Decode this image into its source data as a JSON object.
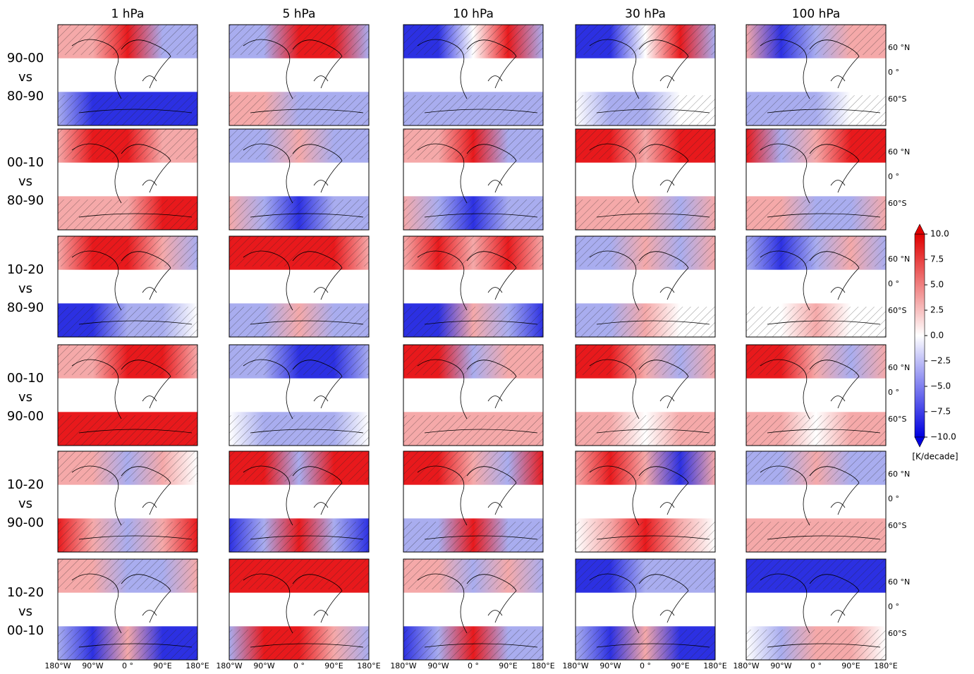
{
  "column_titles": [
    "1 hPa",
    "5 hPa",
    "10 hPa",
    "30 hPa",
    "100 hPa"
  ],
  "row_labels": [
    [
      "90-00",
      "vs",
      "80-90"
    ],
    [
      "00-10",
      "vs",
      "80-90"
    ],
    [
      "10-20",
      "vs",
      "80-90"
    ],
    [
      "00-10",
      "vs",
      "90-00"
    ],
    [
      "10-20",
      "vs",
      "90-00"
    ],
    [
      "10-20",
      "vs",
      "00-10"
    ]
  ],
  "latitude_labels": [
    "60 °N",
    "0 °",
    "60°S"
  ],
  "longitude_labels": [
    "180°W",
    "90°W",
    "0 °",
    "90°E",
    "180°E"
  ],
  "colorbar": {
    "lim": [
      -10,
      10
    ],
    "ticks": [
      {
        "value": 10,
        "label": "10.0"
      },
      {
        "value": 7.5,
        "label": "7.5"
      },
      {
        "value": 5,
        "label": "5.0"
      },
      {
        "value": 2.5,
        "label": "2.5"
      },
      {
        "value": 0,
        "label": "0.0"
      },
      {
        "value": -2.5,
        "label": "−2.5"
      },
      {
        "value": -5,
        "label": "−5.0"
      },
      {
        "value": -7.5,
        "label": "−7.5"
      },
      {
        "value": -10,
        "label": "−10.0"
      }
    ],
    "label": "[K/decade]"
  }
}
